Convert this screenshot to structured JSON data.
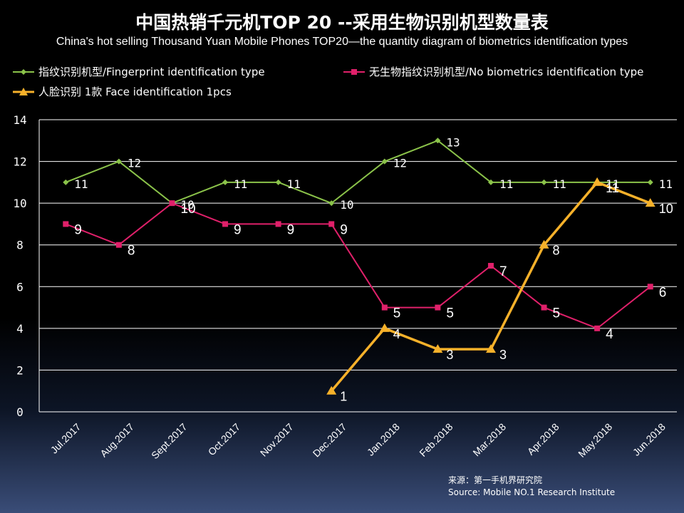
{
  "title": "中国热销千元机TOP 20 --采用生物识别机型数量表",
  "subtitle": "China's hot selling Thousand Yuan Mobile Phones TOP20—the quantity diagram of biometrics identification types",
  "source": {
    "line1": "来源：第一手机界研究院",
    "line2": "Source: Mobile NO.1 Research Institute"
  },
  "chart_data": {
    "type": "line",
    "categories": [
      "Jul.2017",
      "Aug.2017",
      "Sept.2017",
      "Oct.2017",
      "Nov.2017",
      "Dec.2017",
      "Jan.2018",
      "Feb.2018",
      "Mar.2018",
      "Apr.2018",
      "May.2018",
      "Jun.2018"
    ],
    "ylim": [
      0,
      14
    ],
    "yticks": [
      0,
      2,
      4,
      6,
      8,
      10,
      12,
      14
    ],
    "grid": true,
    "legend_position": "top",
    "series": [
      {
        "name": "指纹识别机型/Fingerprint identification type",
        "color": "#8bc34a",
        "marker": "diamond",
        "values": [
          11,
          12,
          10,
          11,
          11,
          10,
          12,
          13,
          11,
          11,
          11,
          11
        ]
      },
      {
        "name": "无生物指纹识别机型/No biometrics identification type",
        "color": "#e0206a",
        "marker": "square",
        "values": [
          9,
          8,
          10,
          9,
          9,
          9,
          5,
          5,
          7,
          5,
          4,
          6
        ]
      },
      {
        "name": "人脸识别 1款 Face identification 1pcs",
        "color": "#f6b12a",
        "marker": "triangle",
        "values": [
          null,
          null,
          null,
          null,
          null,
          1,
          4,
          3,
          3,
          8,
          11,
          10
        ]
      }
    ]
  }
}
